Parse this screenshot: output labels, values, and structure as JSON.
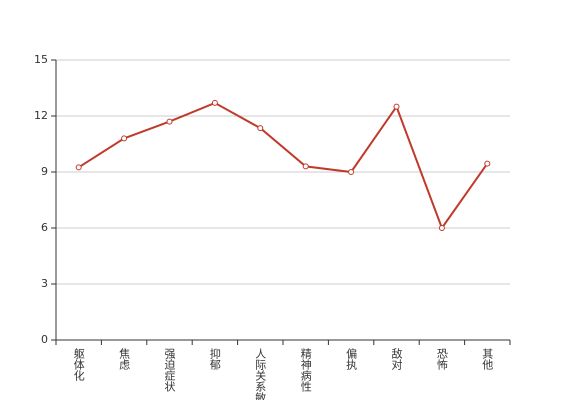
{
  "chart_data": {
    "type": "line",
    "categories": [
      "躯体化",
      "焦虑",
      "强迫症状",
      "抑郁",
      "人际关系敏感",
      "精神病性",
      "偏执",
      "敌对",
      "恐怖",
      "其他"
    ],
    "series": [
      {
        "color": "#c0392b",
        "values": [
          9.25,
          10.8,
          11.7,
          12.7,
          11.35,
          9.3,
          9.0,
          12.5,
          6.0,
          9.45
        ]
      }
    ],
    "ylim": [
      0,
      15
    ],
    "yticks": [
      0,
      3,
      6,
      9,
      12,
      15
    ],
    "grid": true
  }
}
